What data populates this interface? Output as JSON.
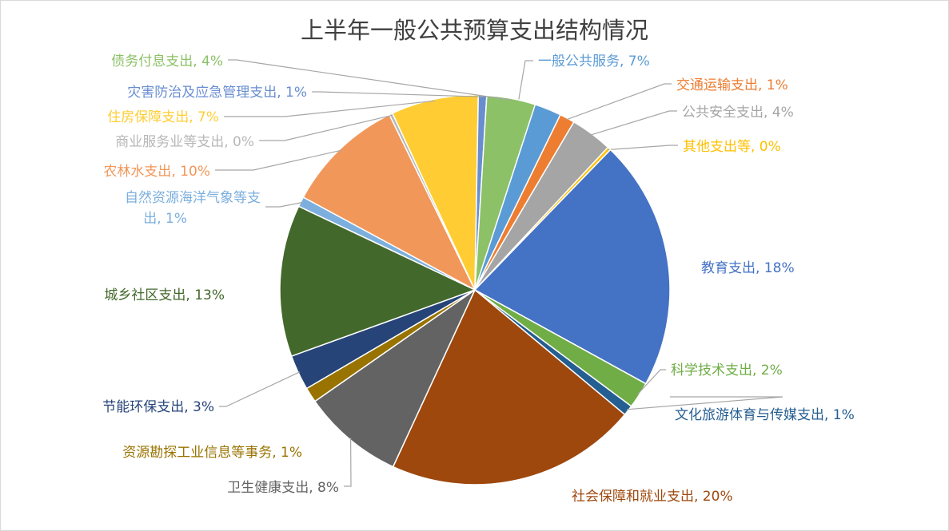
{
  "chart_data": {
    "type": "pie",
    "title": "上半年一般公共预算支出结构情况",
    "slices": [
      {
        "name": "一般公共服务",
        "value": 7,
        "label_text": "一般公共服务, 7%",
        "color": "#5b9bd5"
      },
      {
        "name": "交通运输支出",
        "value": 1,
        "label_text": "交通运输支出, 1%",
        "color": "#ed7d31"
      },
      {
        "name": "公共安全支出",
        "value": 4,
        "label_text": "公共安全支出, 4%",
        "color": "#a5a5a5"
      },
      {
        "name": "其他支出等",
        "value": 0,
        "label_text": "其他支出等, 0%",
        "color": "#ffc000"
      },
      {
        "name": "教育支出",
        "value": 18,
        "label_text": "教育支出, 18%",
        "color": "#4472c4"
      },
      {
        "name": "科学技术支出",
        "value": 2,
        "label_text": "科学技术支出, 2%",
        "color": "#70ad47"
      },
      {
        "name": "文化旅游体育与传媒支出",
        "value": 1,
        "label_text": "文化旅游体育与传媒支出, 1%",
        "color": "#255e91"
      },
      {
        "name": "社会保障和就业支出",
        "value": 20,
        "label_text": "社会保障和就业支出, 20%",
        "color": "#9e480e"
      },
      {
        "name": "卫生健康支出",
        "value": 8,
        "label_text": "卫生健康支出, 8%",
        "color": "#636363"
      },
      {
        "name": "资源勘探工业信息等事务",
        "value": 1,
        "label_text": "资源勘探工业信息等事务, 1%",
        "color": "#997300"
      },
      {
        "name": "节能环保支出",
        "value": 3,
        "label_text": "节能环保支出, 3%",
        "color": "#264478"
      },
      {
        "name": "城乡社区支出",
        "value": 13,
        "label_text": "城乡社区支出, 13%",
        "color": "#43682b"
      },
      {
        "name": "自然资源海洋气象等支出",
        "value": 1,
        "label_text": [
          "自然资源海洋气象等支",
          "出, 1%"
        ],
        "color": "#7cafdd"
      },
      {
        "name": "农林水支出",
        "value": 10,
        "label_text": "农林水支出, 10%",
        "color": "#f1975a"
      },
      {
        "name": "商业服务业等支出",
        "value": 0,
        "label_text": "商业服务业等支出, 0%",
        "color": "#b7b7b7"
      },
      {
        "name": "住房保障支出",
        "value": 7,
        "label_text": "住房保障支出, 7%",
        "color": "#ffcd33"
      },
      {
        "name": "灾害防治及应急管理支出",
        "value": 1,
        "label_text": "灾害防治及应急管理支出, 1%",
        "color": "#698ed0"
      },
      {
        "name": "债务付息支出",
        "value": 4,
        "label_text": "债务付息支出, 4%",
        "color": "#8cc168"
      }
    ]
  }
}
